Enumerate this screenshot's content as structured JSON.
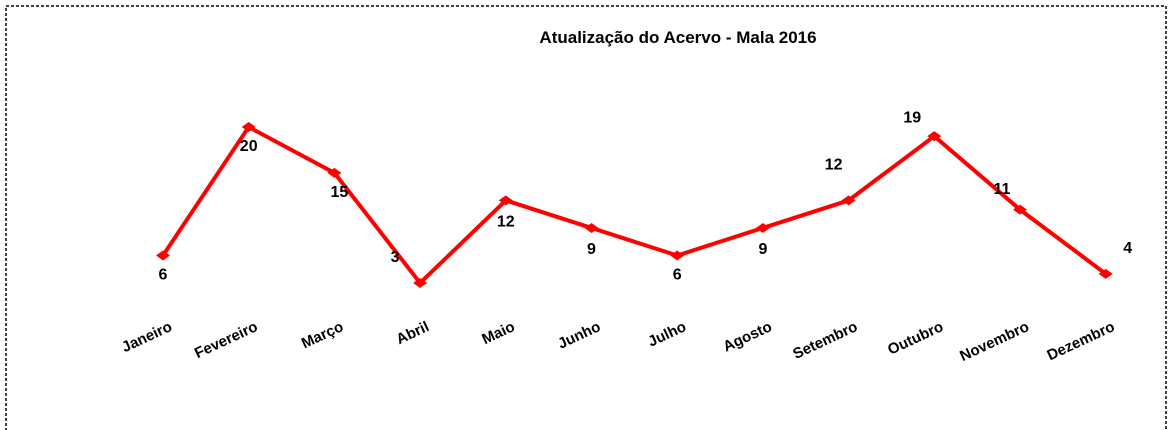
{
  "chart_data": {
    "type": "line",
    "title": "Atualização  do Acervo - Mala  2016",
    "categories": [
      "Janeiro",
      "Fevereiro",
      "Março",
      "Abril",
      "Maio",
      "Junho",
      "Julho",
      "Agosto",
      "Setembro",
      "Outubro",
      "Novembro",
      "Dezembro"
    ],
    "series": [
      {
        "name": "Mala",
        "color": "#ff0000",
        "values": [
          6,
          20,
          15,
          3,
          12,
          9,
          6,
          9,
          12,
          19,
          11,
          4
        ]
      }
    ]
  }
}
